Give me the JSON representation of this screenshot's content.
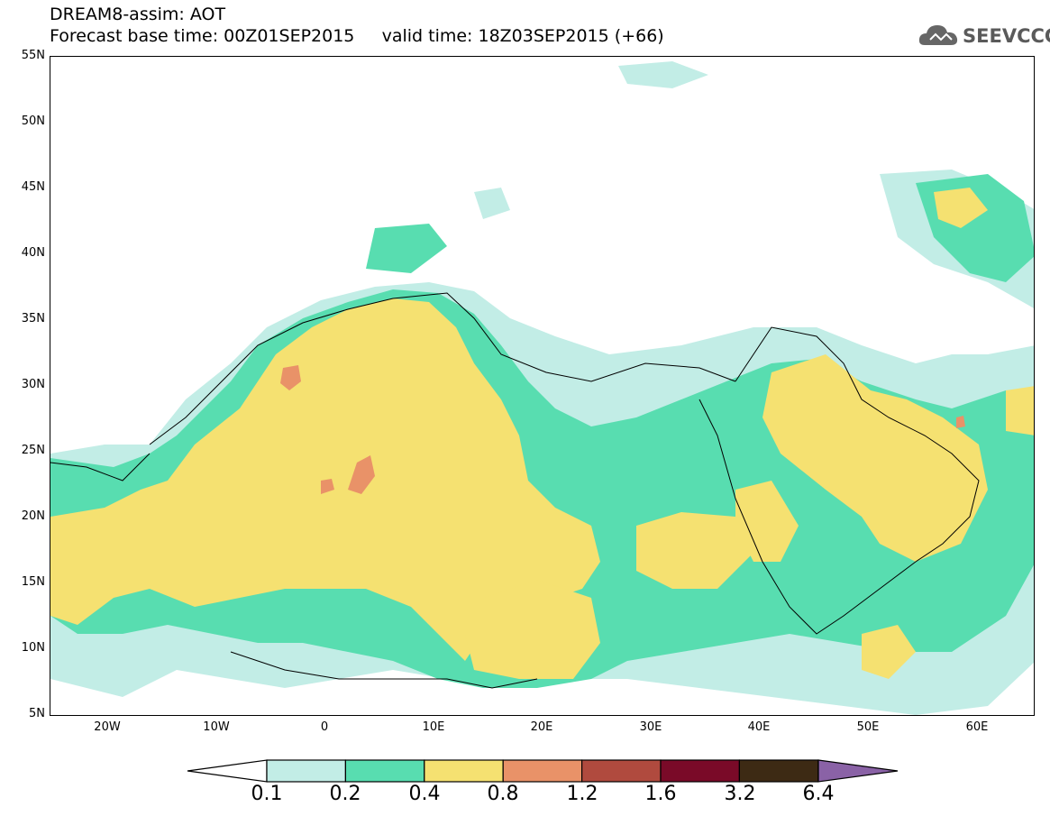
{
  "title": {
    "line1": "DREAM8-assim: AOT",
    "line2": "Forecast base time: 00Z01SEP2015     valid time: 18Z03SEP2015 (+66)"
  },
  "logo": {
    "text": "SEEVCCC",
    "icon": "cloud-icon"
  },
  "map": {
    "lat_ticks": [
      "55N",
      "50N",
      "45N",
      "40N",
      "35N",
      "30N",
      "25N",
      "20N",
      "15N",
      "10N",
      "5N"
    ],
    "lon_ticks": [
      "20W",
      "10W",
      "0",
      "10E",
      "20E",
      "30E",
      "40E",
      "50E",
      "60E"
    ],
    "lon_range": [
      -25,
      65
    ],
    "lat_range": [
      5,
      55
    ]
  },
  "legend": {
    "levels": [
      "0.1",
      "0.2",
      "0.4",
      "0.8",
      "1.2",
      "1.6",
      "3.2",
      "6.4"
    ],
    "colors": [
      "#c2ede6",
      "#58ddb0",
      "#f5e171",
      "#e99268",
      "#b04a3e",
      "#7a0a28",
      "#3d2a14",
      "#8a62a6"
    ],
    "under_color": "#ffffff"
  }
}
